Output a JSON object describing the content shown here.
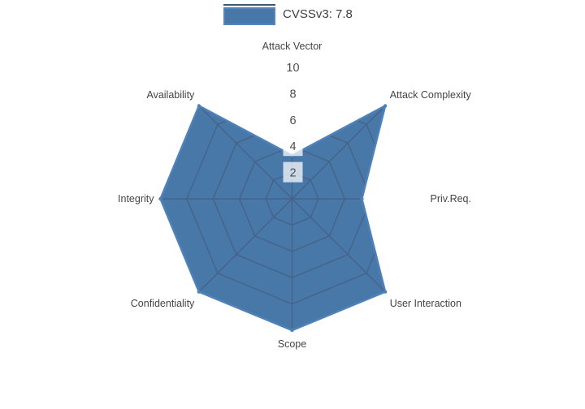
{
  "legend": {
    "label": "CVSSv3: 7.8",
    "swatch_color": "#4878A8",
    "swatch_border": "#5585BB"
  },
  "chart_data": {
    "type": "radar",
    "categories": [
      "Attack Vector",
      "Attack Complexity",
      "Priv.Req.",
      "User Interaction",
      "Scope",
      "Confidentiality",
      "Integrity",
      "Availability"
    ],
    "series": [
      {
        "name": "CVSSv3: 7.8",
        "values": [
          3.3,
          10,
          5.3,
          10,
          10,
          10,
          10,
          10
        ]
      }
    ],
    "ticks": [
      2,
      4,
      6,
      8,
      10
    ],
    "range": [
      0,
      10
    ],
    "legend_position": "top-center",
    "grid": "spider-web, rings every 2 units, visible only inside filled area",
    "colors": {
      "fill": "#4878A8",
      "line": "#4E82B8",
      "grid_line": "#456288",
      "tick_text": "#4D4D4D",
      "tick_bg_opacity": "0.73",
      "label_text": "#444444"
    }
  }
}
